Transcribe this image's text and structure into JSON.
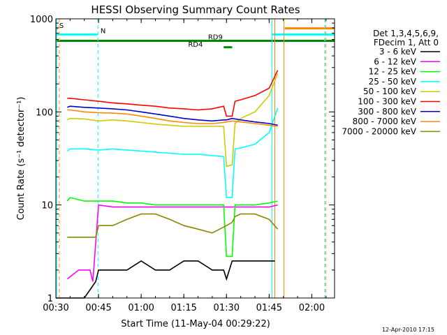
{
  "chart_data": {
    "type": "line",
    "title": "HESSI Observing Summary Count Rates",
    "xlabel": "Start Time (11-May-04 00:29:22)",
    "ylabel": "Count Rate (s⁻¹ detector⁻¹)",
    "x_unit": "minutes after 00:30 UT",
    "xlim": [
      0,
      98
    ],
    "ylim": [
      1,
      1000
    ],
    "yscale": "log",
    "grid": false,
    "x_ticks": [
      {
        "x": 0,
        "label": "00:30"
      },
      {
        "x": 15,
        "label": "00:45"
      },
      {
        "x": 30,
        "label": "01:00"
      },
      {
        "x": 45,
        "label": "01:15"
      },
      {
        "x": 60,
        "label": "01:30"
      },
      {
        "x": 75,
        "label": "01:45"
      },
      {
        "x": 90,
        "label": "02:00"
      }
    ],
    "y_ticks": [
      {
        "y": 1,
        "label": "1"
      },
      {
        "y": 10,
        "label": "10"
      },
      {
        "y": 100,
        "label": "100"
      },
      {
        "y": 1000,
        "label": "1000"
      }
    ],
    "legend": {
      "position": "right",
      "header": [
        "Det 1,3,4,5,6,9,",
        "FDecim 1, Att 0"
      ]
    },
    "series": [
      {
        "name": "3 - 6 keV",
        "color": "#000000",
        "x": [
          0,
          5,
          10,
          14,
          15,
          20,
          25,
          30,
          35,
          40,
          45,
          50,
          55,
          59,
          60,
          62,
          65,
          70,
          75,
          77
        ],
        "y": [
          1,
          1,
          1,
          1.5,
          2,
          2,
          2,
          2.5,
          2,
          2,
          2.5,
          2.5,
          2,
          2,
          1.6,
          2.5,
          2.5,
          2.5,
          2.5,
          2.5
        ]
      },
      {
        "name": "6 - 12 keV",
        "color": "#ff00ff",
        "x": [
          4,
          8,
          12,
          13,
          15,
          20,
          25,
          30,
          35,
          40,
          45,
          50,
          55,
          60,
          65,
          70,
          75,
          78
        ],
        "y": [
          1.6,
          2,
          2,
          1.5,
          10,
          9.5,
          9.5,
          9.5,
          9.5,
          9.5,
          9.5,
          9.5,
          9.5,
          9.5,
          9.5,
          9.5,
          9.5,
          10
        ]
      },
      {
        "name": "12 - 25 keV",
        "color": "#00ff00",
        "x": [
          4,
          5,
          10,
          15,
          20,
          25,
          30,
          35,
          40,
          45,
          50,
          55,
          59,
          60,
          62,
          63,
          65,
          70,
          75,
          78
        ],
        "y": [
          11,
          12,
          11,
          11,
          11,
          10.5,
          10.5,
          10,
          10,
          10,
          10,
          10,
          10,
          2.8,
          2.8,
          10,
          10,
          10,
          10.5,
          11
        ]
      },
      {
        "name": "25 - 50 keV",
        "color": "#00ffff",
        "x": [
          4,
          5,
          10,
          15,
          20,
          25,
          30,
          35,
          40,
          45,
          50,
          55,
          59,
          60,
          62,
          63,
          65,
          70,
          75,
          78
        ],
        "y": [
          38,
          40,
          40,
          39,
          40,
          39,
          38,
          37,
          36,
          35,
          35,
          34,
          33,
          12,
          12,
          40,
          41,
          45,
          60,
          110
        ]
      },
      {
        "name": "50 - 100 keV",
        "color": "#cccc00",
        "x": [
          4,
          5,
          10,
          15,
          20,
          25,
          30,
          35,
          40,
          45,
          50,
          55,
          59,
          60,
          62,
          63,
          65,
          70,
          75,
          78
        ],
        "y": [
          82,
          85,
          84,
          80,
          82,
          80,
          77,
          74,
          72,
          70,
          70,
          70,
          70,
          26,
          27,
          75,
          85,
          100,
          150,
          260
        ]
      },
      {
        "name": "100 - 300 keV",
        "color": "#ff0000",
        "x": [
          4,
          5,
          10,
          15,
          20,
          25,
          30,
          35,
          40,
          45,
          50,
          55,
          59,
          60,
          62,
          63,
          65,
          70,
          75,
          78
        ],
        "y": [
          140,
          140,
          135,
          130,
          125,
          122,
          118,
          115,
          110,
          108,
          105,
          108,
          115,
          90,
          90,
          130,
          135,
          150,
          180,
          280
        ]
      },
      {
        "name": "300 - 800 keV",
        "color": "#0000cc",
        "x": [
          4,
          5,
          10,
          15,
          20,
          25,
          30,
          35,
          40,
          45,
          50,
          55,
          59,
          60,
          62,
          65,
          70,
          75,
          78
        ],
        "y": [
          112,
          115,
          112,
          110,
          108,
          105,
          100,
          95,
          90,
          85,
          82,
          80,
          82,
          82,
          85,
          82,
          78,
          75,
          72
        ]
      },
      {
        "name": "800 - 7000 keV",
        "color": "#ff8800",
        "x": [
          4,
          5,
          10,
          15,
          20,
          25,
          30,
          35,
          40,
          45,
          50,
          55,
          59,
          60,
          62,
          65,
          70,
          75,
          78
        ],
        "y": [
          105,
          105,
          100,
          98,
          97,
          95,
          90,
          85,
          80,
          77,
          75,
          75,
          77,
          78,
          80,
          78,
          75,
          72,
          70
        ]
      },
      {
        "name": "7000 - 20000 keV",
        "color": "#888800",
        "x": [
          4,
          5,
          10,
          14,
          15,
          20,
          25,
          30,
          35,
          40,
          45,
          50,
          55,
          60,
          62,
          63,
          65,
          70,
          75,
          78
        ],
        "y": [
          4.5,
          4.5,
          4.5,
          4.5,
          6,
          6,
          7,
          8,
          8,
          7,
          6,
          5.5,
          5,
          6,
          6.5,
          7.5,
          8,
          8,
          7,
          5.5
        ]
      }
    ],
    "annotations": [
      {
        "text": "S",
        "color": "#ff8800",
        "x": 1.2,
        "y": 800
      },
      {
        "text": "N",
        "color": "#00ffff",
        "x": 15.7,
        "y": 700
      },
      {
        "text": "RD9",
        "color": "#008800",
        "x": 53.5,
        "y": 600
      },
      {
        "text": "RD4",
        "color": "#008800",
        "x": 46.5,
        "y": 500
      }
    ],
    "flag_bars": [
      {
        "color": "#00ffff",
        "x0": 0,
        "x1": 14.7,
        "y": 680
      },
      {
        "color": "#00ffff",
        "x0": 76,
        "x1": 98,
        "y": 680
      },
      {
        "color": "#ff8800",
        "x0": 0,
        "x1": 0.8,
        "y": 790
      },
      {
        "color": "#ff8800",
        "x0": 80.5,
        "x1": 98,
        "y": 790
      },
      {
        "color": "#008800",
        "x0": 0,
        "x1": 98,
        "y": 580
      },
      {
        "color": "#008800",
        "x0": 59,
        "x1": 62,
        "y": 495
      }
    ],
    "vlines": [
      {
        "x": 0.3,
        "color": "#00ffff",
        "dash": false
      },
      {
        "x": 1.2,
        "color": "#ff8800",
        "dash": true
      },
      {
        "x": 14.8,
        "color": "#00ffff",
        "dash": true
      },
      {
        "x": 76,
        "color": "#00ffff",
        "dash": false
      },
      {
        "x": 77,
        "color": "#ff8800",
        "dash": false
      },
      {
        "x": 80.2,
        "color": "#ff8800",
        "dash": false
      },
      {
        "x": 94.5,
        "color": "#00ffff",
        "dash": true
      },
      {
        "x": 94.9,
        "color": "#ff8800",
        "dash": true
      }
    ]
  },
  "footer_date": "12-Apr-2010 17:15"
}
